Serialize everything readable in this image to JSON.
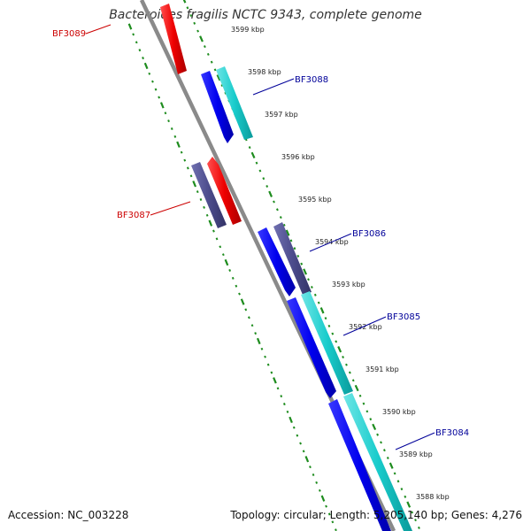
{
  "title": "Bacteroides fragilis NCTC 9343, complete genome",
  "footer": {
    "accession": "Accession: NC_003228",
    "summary": "Topology: circular; Length: 5,205,140 bp; Genes: 4,276"
  },
  "colors": {
    "backbone": "#8a8a8a",
    "tick": "#1e8c1e",
    "forward_label": "#000099",
    "reverse_label": "#cc0000"
  },
  "ticks": [
    "3599 kbp",
    "3598 kbp",
    "3597 kbp",
    "3596 kbp",
    "3595 kbp",
    "3594 kbp",
    "3593 kbp",
    "3592 kbp",
    "3591 kbp",
    "3590 kbp",
    "3589 kbp",
    "3588 kbp"
  ],
  "labels": {
    "bf3089": "BF3089",
    "bf3088": "BF3088",
    "bf3087": "BF3087",
    "bf3086": "BF3086",
    "bf3085": "BF3085",
    "bf3084": "BF3084"
  }
}
